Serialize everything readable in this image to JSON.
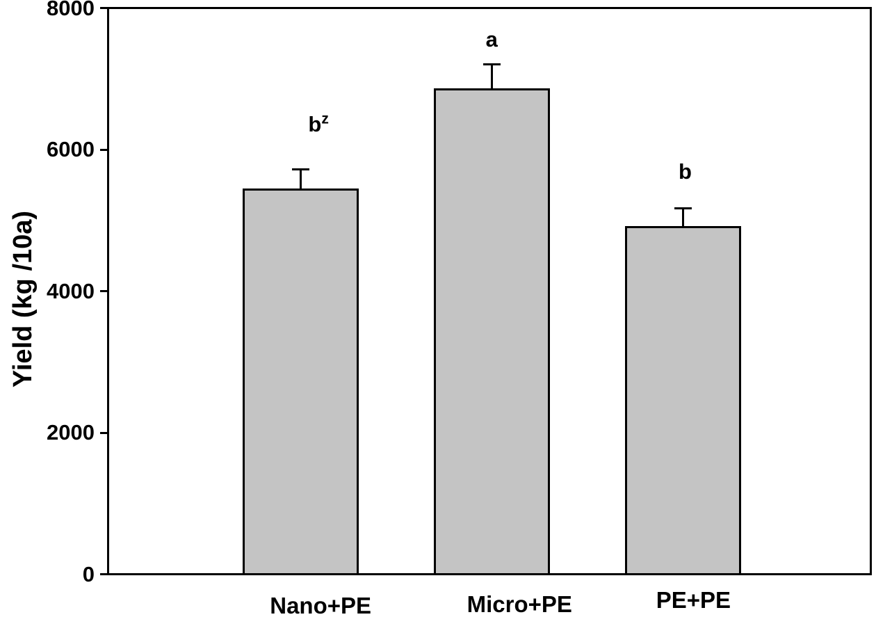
{
  "chart_data": {
    "type": "bar",
    "title": "",
    "xlabel": "",
    "ylabel": "Yield (kg /10a)",
    "categories": [
      "Nano+PE",
      "Micro+PE",
      "PE+PE"
    ],
    "values": [
      5450,
      6860,
      4920
    ],
    "error_bars_plus": [
      270,
      340,
      245
    ],
    "significance_labels": [
      {
        "text": "b",
        "superscript": "z"
      },
      {
        "text": "a",
        "superscript": ""
      },
      {
        "text": "b",
        "superscript": ""
      }
    ],
    "ylim": [
      0,
      8000
    ],
    "yticks": [
      "0",
      "2000",
      "4000",
      "6000",
      "8000"
    ],
    "grid": "off",
    "legend": "none",
    "colors": {
      "bar_fill": "#c4c4c4",
      "bar_edge": "#000000",
      "axis": "#000000",
      "text": "#000000",
      "background": "#ffffff"
    }
  }
}
